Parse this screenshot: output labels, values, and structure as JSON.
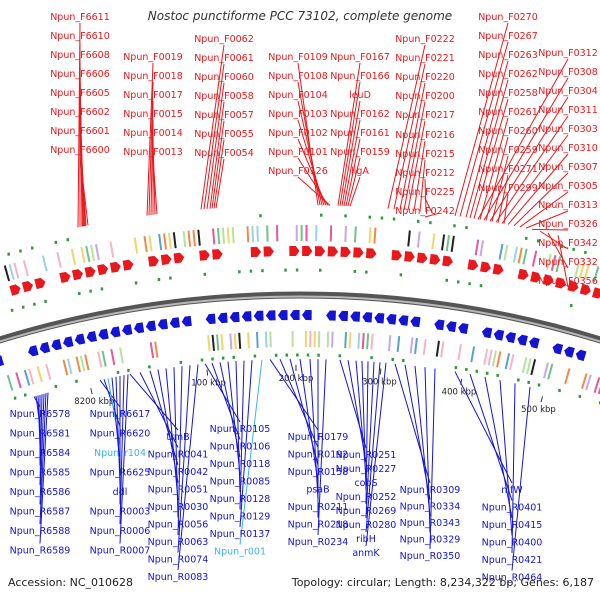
{
  "title": "Nostoc punctiforme PCC 73102, complete genome",
  "footer": {
    "accession": "Accession: NC_010628",
    "summary": "Topology: circular; Length: 8,234,322 bp; Genes: 6,187"
  },
  "colors": {
    "forward": "#e8181c",
    "reverse": "#1414d2",
    "rna": "#39b5e8",
    "backbone": "#7a7a7a",
    "tick": "#2e9a3a",
    "text": "#333333"
  },
  "ticks": [
    "8200 kbp",
    "100 kbp",
    "200 kbp",
    "300 kbp",
    "400 kbp",
    "500 kbp"
  ],
  "forward_labels": [
    "Npun_F6611",
    "Npun_F6610",
    "Npun_F6608",
    "Npun_F6606",
    "Npun_F6605",
    "Npun_F6602",
    "Npun_F6601",
    "Npun_F6600",
    "Npun_F0019",
    "Npun_F0018",
    "Npun_F0017",
    "Npun_F0015",
    "Npun_F0014",
    "Npun_F0013",
    "Npun_F0062",
    "Npun_F0061",
    "Npun_F0060",
    "Npun_F0058",
    "Npun_F0057",
    "Npun_F0055",
    "Npun_F0054",
    "Npun_F0109",
    "Npun_F0108",
    "Npun_F0104",
    "Npun_F0103",
    "Npun_F0102",
    "Npun_F0101",
    "Npun_F0126",
    "Npun_F0167",
    "Npun_F0166",
    "leuD",
    "Npun_F0162",
    "Npun_F0161",
    "Npun_F0159",
    "ligA",
    "Npun_F0222",
    "Npun_F0221",
    "Npun_F0220",
    "Npun_F0200",
    "Npun_F0217",
    "Npun_F0216",
    "Npun_F0215",
    "Npun_F0212",
    "Npun_F0225",
    "Npun_F0242",
    "Npun_F0270",
    "Npun_F0267",
    "Npun_F0263",
    "Npun_F0262",
    "Npun_F0258",
    "Npun_F0261",
    "Npun_F0260",
    "Npun_F0259",
    "Npun_F0271",
    "Npun_F0299",
    "Npun_F0312",
    "Npun_F0308",
    "Npun_F0304",
    "Npun_F0311",
    "Npun_F0303",
    "Npun_F0310",
    "Npun_F0307",
    "Npun_F0305",
    "Npun_F0313",
    "Npun_F0326",
    "Npun_F0342",
    "Npun_F0332",
    "Npun_F0356"
  ],
  "reverse_labels": [
    "Npun_R6578",
    "Npun_R6581",
    "Npun_R6584",
    "Npun_R6585",
    "Npun_R6586",
    "Npun_R6587",
    "Npun_R6588",
    "Npun_R6589",
    "Npun_R6617",
    "Npun_R6620",
    "Npun_r104",
    "Npun_R6625",
    "ddl",
    "Npun_R0003",
    "Npun_R0006",
    "Npun_R0007",
    "trmB",
    "Npun_R0041",
    "Npun_R0042",
    "Npun_R0051",
    "Npun_R0030",
    "Npun_R0056",
    "Npun_R0063",
    "Npun_R0074",
    "Npun_R0083",
    "Npun_R0105",
    "Npun_R0106",
    "Npun_R0118",
    "Npun_R0085",
    "Npun_R0128",
    "Npun_R0129",
    "Npun_R0137",
    "Npun_r001",
    "Npun_R0179",
    "Npun_R0192",
    "Npun_R0158",
    "psaB",
    "Npun_R0211",
    "Npun_R0218",
    "Npun_R0234",
    "Npun_R0251",
    "Npun_R0227",
    "cobS",
    "Npun_R0252",
    "Npun_R0269",
    "Npun_R0280",
    "ribH",
    "anmK",
    "Npun_R0309",
    "Npun_R0334",
    "Npun_R0343",
    "Npun_R0329",
    "Npun_R0350",
    "nifW",
    "Npun_R0401",
    "Npun_R0415",
    "Npun_R0400",
    "Npun_R0421",
    "Npun_R0464"
  ]
}
